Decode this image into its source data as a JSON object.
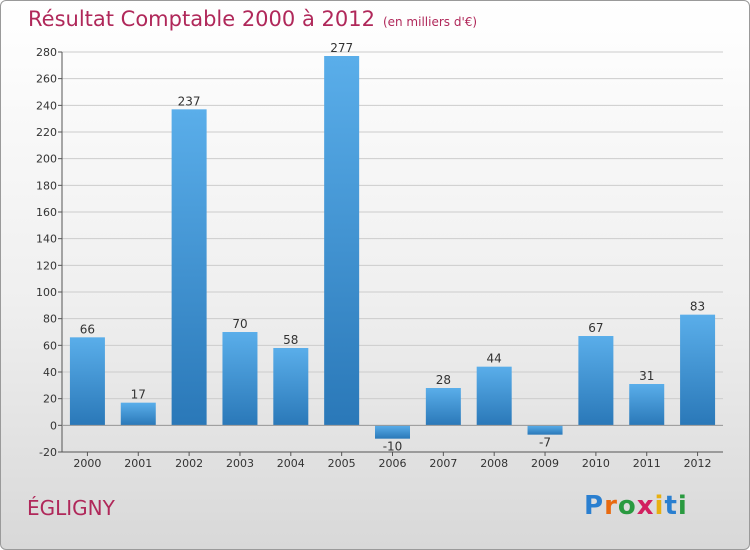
{
  "title": "Résultat Comptable 2000 à 2012",
  "subtitle": "(en milliers d'€)",
  "city": "ÉGLIGNY",
  "logo": {
    "letters": [
      "P",
      "r",
      "o",
      "x",
      "i",
      "t",
      "i"
    ],
    "colors": [
      "#2a7fd0",
      "#e86a10",
      "#2a9a40",
      "#d22060",
      "#e8b010",
      "#2a7fd0",
      "#2a9a40"
    ]
  },
  "colors": {
    "title": "#b0285a",
    "bar_light": "#5aaeea",
    "bar_dark": "#2a78b8",
    "grid": "#cccccc"
  },
  "chart_data": {
    "type": "bar",
    "title": "Résultat Comptable 2000 à 2012",
    "subtitle": "(en milliers d'€)",
    "categories": [
      "2000",
      "2001",
      "2002",
      "2003",
      "2004",
      "2005",
      "2006",
      "2007",
      "2008",
      "2009",
      "2010",
      "2011",
      "2012"
    ],
    "values": [
      66,
      17,
      237,
      70,
      58,
      277,
      -10,
      28,
      44,
      -7,
      67,
      31,
      83
    ],
    "labels": [
      "66",
      "17",
      "237",
      "70",
      "58",
      "277",
      "-10",
      "28",
      "44",
      "-7",
      "67",
      "31",
      "83"
    ],
    "ylim": [
      -20,
      280
    ],
    "yticks": [
      -20,
      0,
      20,
      40,
      60,
      80,
      100,
      120,
      140,
      160,
      180,
      200,
      220,
      240,
      260,
      280
    ],
    "xlabel": "",
    "ylabel": "",
    "grid": true,
    "legend": "none"
  }
}
